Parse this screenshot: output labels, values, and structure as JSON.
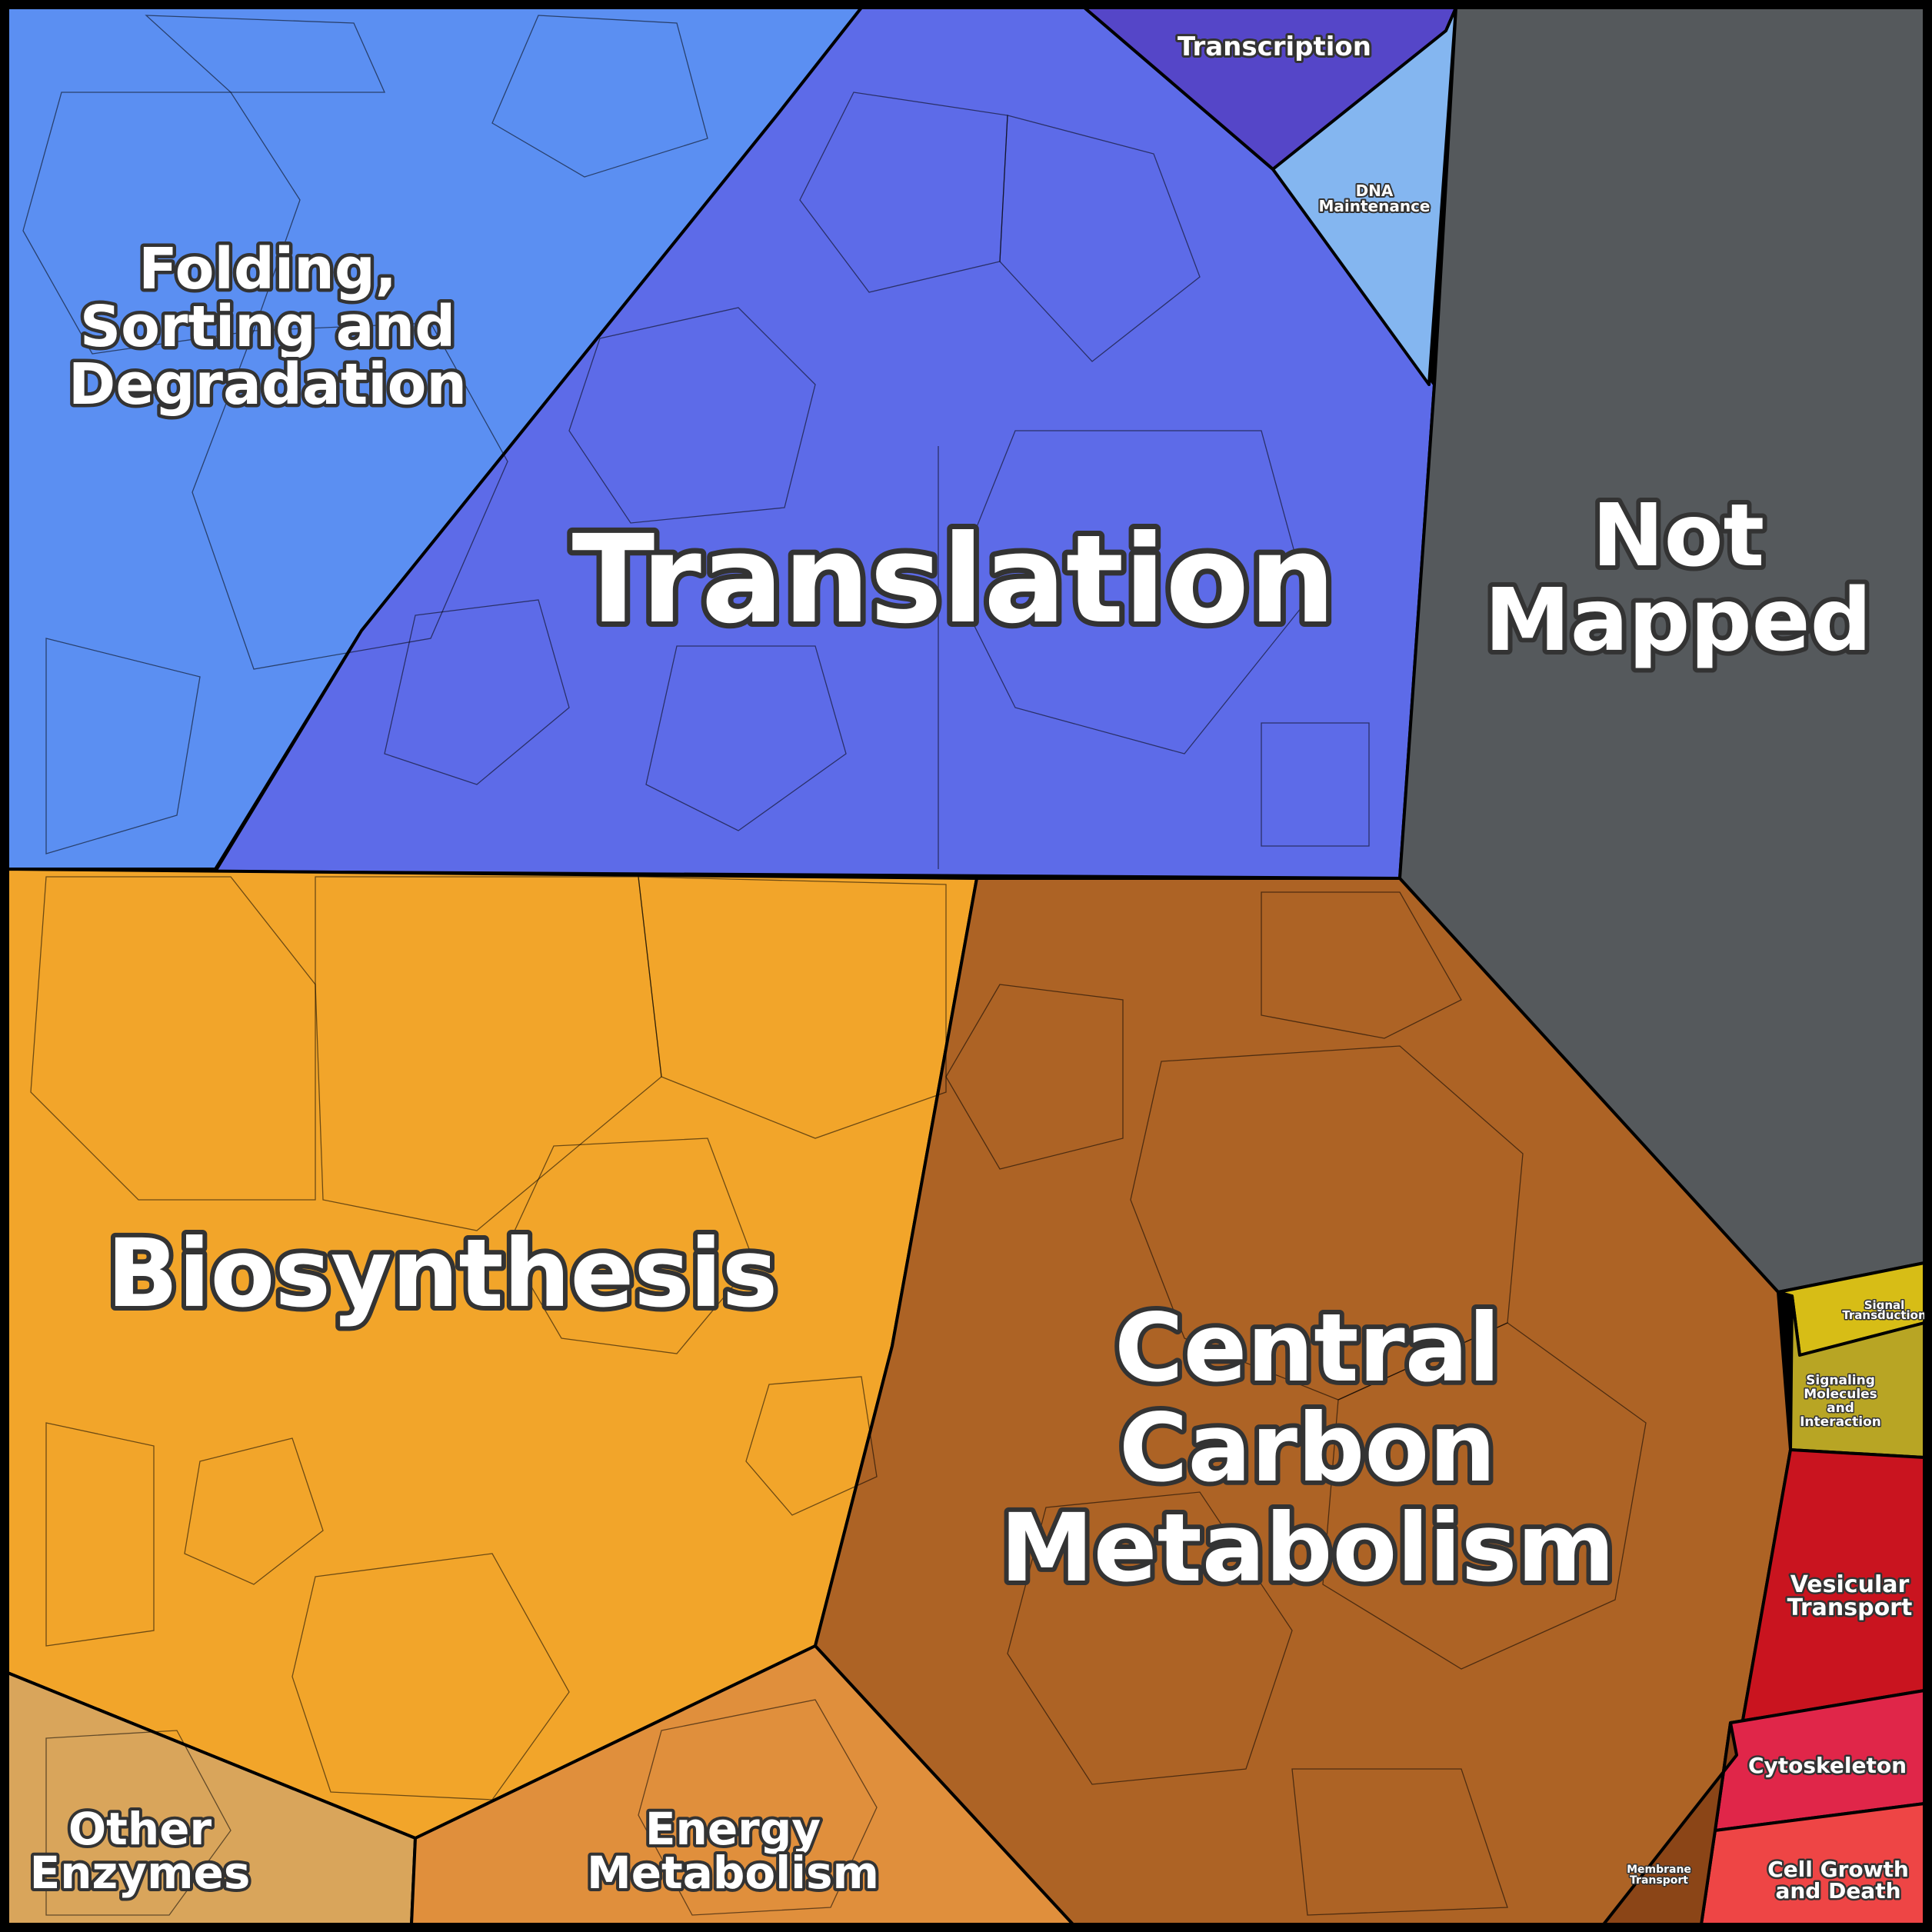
{
  "diagram": {
    "type": "proteomap",
    "regions": [
      {
        "key": "folding",
        "lines": [
          "Folding,",
          "Sorting and",
          "Degradation"
        ],
        "color": "#5b8ff2"
      },
      {
        "key": "translation",
        "lines": [
          "Translation"
        ],
        "color": "#5d6be8"
      },
      {
        "key": "transcription",
        "lines": [
          "Transcription"
        ],
        "color": "#5546c8"
      },
      {
        "key": "dna",
        "lines": [
          "DNA",
          "Maintenance"
        ],
        "color": "#84b6f0"
      },
      {
        "key": "not_mapped",
        "lines": [
          "Not",
          "Mapped"
        ],
        "color": "#55595c"
      },
      {
        "key": "biosynthesis",
        "lines": [
          "Biosynthesis"
        ],
        "color": "#f2a52a"
      },
      {
        "key": "central_carbon",
        "lines": [
          "Central",
          "Carbon",
          "Metabolism"
        ],
        "color": "#ad6325"
      },
      {
        "key": "other_enzymes",
        "lines": [
          "Other",
          "Enzymes"
        ],
        "color": "#d9a55b"
      },
      {
        "key": "energy",
        "lines": [
          "Energy",
          "Metabolism"
        ],
        "color": "#e08f3c"
      },
      {
        "key": "signal_transduction",
        "lines": [
          "Signal",
          "Transduction"
        ],
        "color": "#d7bd16"
      },
      {
        "key": "signaling_molecules",
        "lines": [
          "Signaling",
          "Molecules",
          "and",
          "Interaction"
        ],
        "color": "#b8a524"
      },
      {
        "key": "vesicular",
        "lines": [
          "Vesicular",
          "Transport"
        ],
        "color": "#c9141f"
      },
      {
        "key": "cytoskeleton",
        "lines": [
          "Cytoskeleton"
        ],
        "color": "#e02649"
      },
      {
        "key": "cell_growth",
        "lines": [
          "Cell Growth",
          "and Death"
        ],
        "color": "#ee4545"
      },
      {
        "key": "membrane",
        "lines": [
          "Membrane",
          "Transport"
        ],
        "color": "#8b4517"
      }
    ]
  }
}
